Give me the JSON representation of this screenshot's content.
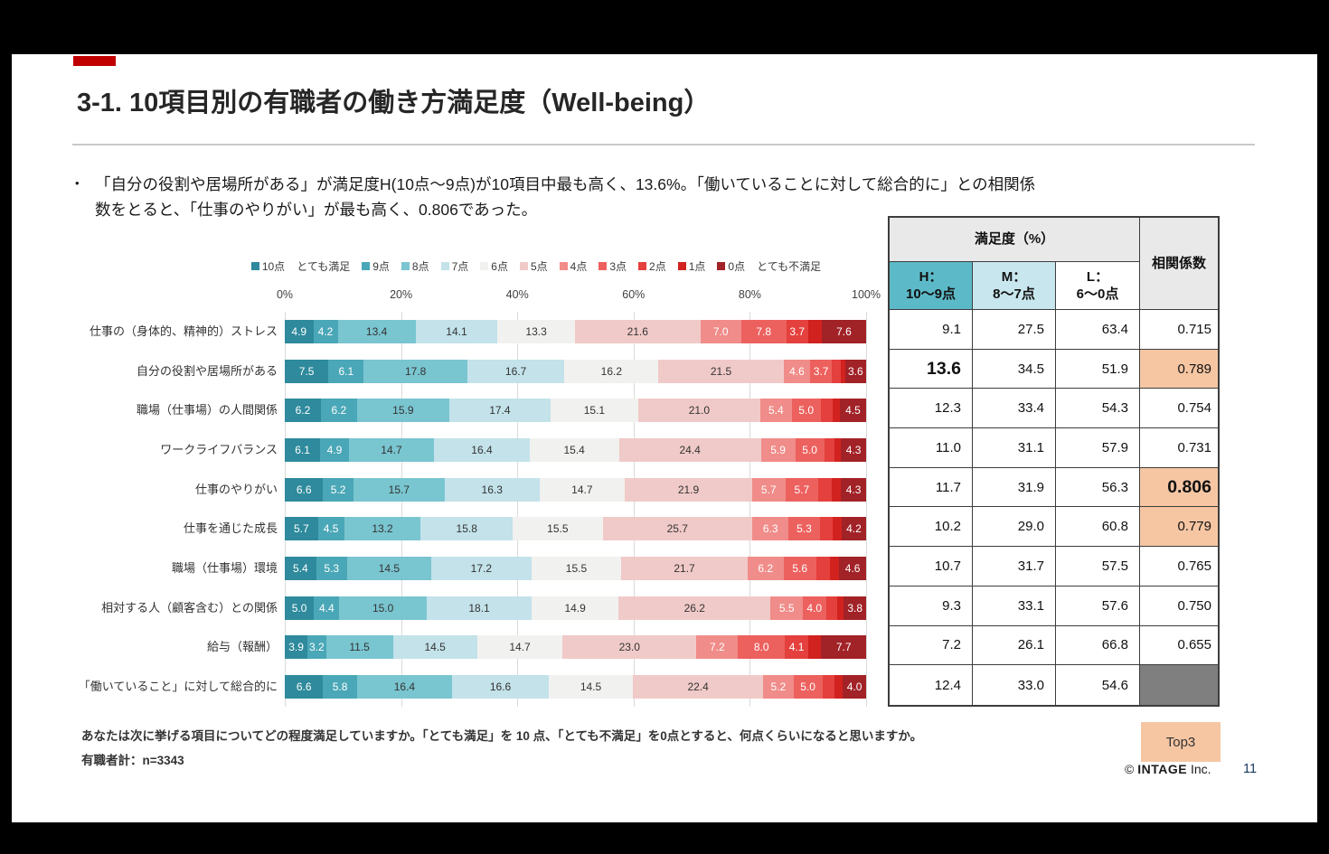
{
  "slide": {
    "title": "3-1. 10項目別の有職者の働き方満足度（Well-being）"
  },
  "bullet": {
    "marker": "•",
    "lines": [
      "「自分の役割や居場所がある」が満足度H(10点〜9点)が10項目中最も高く、13.6%。「働いていることに対して総合的に」との相関係",
      "数をとると、「仕事のやりがい」が最も高く、0.806であった。"
    ]
  },
  "colors": {
    "accent": "#c00000",
    "highlight": "#f6c6a3",
    "table_header_gray": "#e9e9e9",
    "h_header": "#5cbac8",
    "m_header": "#c8e6ee",
    "l_header": "#ffffff",
    "gray_cell": "#7f7f7f"
  },
  "chart_data": {
    "type": "bar",
    "variant": "100pct-stacked-horizontal",
    "unit": "%",
    "xlim": [
      0,
      100
    ],
    "x_ticks": [
      "0%",
      "20%",
      "40%",
      "60%",
      "80%",
      "100%"
    ],
    "grid": true,
    "legend_position": "top",
    "series_labels": [
      "10点",
      "9点",
      "8点",
      "7点",
      "6点",
      "5点",
      "4点",
      "3点",
      "2点",
      "1点",
      "0点"
    ],
    "series_colors": [
      "#2e8a9c",
      "#4aa7b7",
      "#79c5d0",
      "#c3e2ea",
      "#f1f1ef",
      "#f0cac8",
      "#f08c89",
      "#ec615e",
      "#e4403d",
      "#d2221f",
      "#a12227"
    ],
    "value_label_colors": [
      "#ffffff",
      "#ffffff",
      "#333333",
      "#333333",
      "#333333",
      "#333333",
      "#ffffff",
      "#ffffff",
      "#ffffff",
      "#ffffff",
      "#ffffff"
    ],
    "legend": [
      {
        "label": "10点",
        "color": "#2e8a9c"
      },
      {
        "label": "とても満足",
        "color": null
      },
      {
        "label": "9点",
        "color": "#4aa7b7"
      },
      {
        "label": "8点",
        "color": "#79c5d0"
      },
      {
        "label": "7点",
        "color": "#c3e2ea"
      },
      {
        "label": "6点",
        "color": "#f1f1ef"
      },
      {
        "label": "5点",
        "color": "#f0cac8"
      },
      {
        "label": "4点",
        "color": "#f08c89"
      },
      {
        "label": "3点",
        "color": "#ec615e"
      },
      {
        "label": "2点",
        "color": "#e4403d"
      },
      {
        "label": "1点",
        "color": "#d2221f"
      },
      {
        "label": "0点",
        "color": "#a12227"
      },
      {
        "label": "とても不満足",
        "color": null
      }
    ],
    "rows": [
      {
        "category": "仕事の（身体的、精神的）ストレス",
        "values": [
          4.9,
          4.2,
          13.4,
          14.1,
          13.3,
          21.6,
          7.0,
          7.8,
          3.7,
          2.4,
          7.6
        ],
        "labels": [
          "4.9",
          "4.2",
          "13.4",
          "14.1",
          "13.3",
          "21.6",
          "7.0",
          "7.8",
          "3.7",
          "",
          "7.6"
        ]
      },
      {
        "category": "自分の役割や居場所がある",
        "values": [
          7.5,
          6.1,
          17.8,
          16.7,
          16.2,
          21.5,
          4.6,
          3.7,
          1.5,
          0.8,
          3.6
        ],
        "labels": [
          "7.5",
          "6.1",
          "17.8",
          "16.7",
          "16.2",
          "21.5",
          "4.6",
          "3.7",
          "",
          "",
          "3.6"
        ]
      },
      {
        "category": "職場（仕事場）の人間関係",
        "values": [
          6.2,
          6.2,
          15.9,
          17.4,
          15.1,
          21.0,
          5.4,
          5.0,
          2.1,
          1.2,
          4.5
        ],
        "labels": [
          "6.2",
          "6.2",
          "15.9",
          "17.4",
          "15.1",
          "21.0",
          "5.4",
          "5.0",
          "",
          "",
          "4.5"
        ]
      },
      {
        "category": "ワークライフバランス",
        "values": [
          6.1,
          4.9,
          14.7,
          16.4,
          15.4,
          24.4,
          5.9,
          5.0,
          1.8,
          1.1,
          4.3
        ],
        "labels": [
          "6.1",
          "4.9",
          "14.7",
          "16.4",
          "15.4",
          "24.4",
          "5.9",
          "5.0",
          "",
          "",
          "4.3"
        ]
      },
      {
        "category": "仕事のやりがい",
        "values": [
          6.6,
          5.2,
          15.7,
          16.3,
          14.7,
          21.9,
          5.7,
          5.7,
          2.3,
          1.6,
          4.3
        ],
        "labels": [
          "6.6",
          "5.2",
          "15.7",
          "16.3",
          "14.7",
          "21.9",
          "5.7",
          "5.7",
          "",
          "",
          "4.3"
        ]
      },
      {
        "category": "仕事を通じた成長",
        "values": [
          5.7,
          4.5,
          13.2,
          15.8,
          15.5,
          25.7,
          6.3,
          5.3,
          2.2,
          1.6,
          4.2
        ],
        "labels": [
          "5.7",
          "4.5",
          "13.2",
          "15.8",
          "15.5",
          "25.7",
          "6.3",
          "5.3",
          "",
          "",
          "4.2"
        ]
      },
      {
        "category": "職場（仕事場）環境",
        "values": [
          5.4,
          5.3,
          14.5,
          17.2,
          15.5,
          21.7,
          6.2,
          5.6,
          2.4,
          1.6,
          4.6
        ],
        "labels": [
          "5.4",
          "5.3",
          "14.5",
          "17.2",
          "15.5",
          "21.7",
          "6.2",
          "5.6",
          "",
          "",
          "4.6"
        ]
      },
      {
        "category": "相対する人（顧客含む）との関係",
        "values": [
          5.0,
          4.4,
          15.0,
          18.1,
          14.9,
          26.2,
          5.5,
          4.0,
          1.9,
          1.2,
          3.8
        ],
        "labels": [
          "5.0",
          "4.4",
          "15.0",
          "18.1",
          "14.9",
          "26.2",
          "5.5",
          "4.0",
          "",
          "",
          "3.8"
        ]
      },
      {
        "category": "給与（報酬）",
        "values": [
          3.9,
          3.2,
          11.5,
          14.5,
          14.7,
          23.0,
          7.2,
          8.0,
          4.1,
          2.2,
          7.7
        ],
        "labels": [
          "3.9",
          "3.2",
          "11.5",
          "14.5",
          "14.7",
          "23.0",
          "7.2",
          "8.0",
          "4.1",
          "",
          "7.7"
        ]
      },
      {
        "category": "「働いていること」に対して総合的に",
        "values": [
          6.6,
          5.8,
          16.4,
          16.6,
          14.5,
          22.4,
          5.2,
          5.0,
          2.1,
          1.4,
          4.0
        ],
        "labels": [
          "6.6",
          "5.8",
          "16.4",
          "16.6",
          "14.5",
          "22.4",
          "5.2",
          "5.0",
          "",
          "",
          "4.0"
        ]
      }
    ]
  },
  "table": {
    "header": {
      "satisfaction": "満足度（%）",
      "corr": "相関係数",
      "cols": [
        {
          "l1": "H：",
          "l2": "10〜9点"
        },
        {
          "l1": "M：",
          "l2": "8〜7点"
        },
        {
          "l1": "L：",
          "l2": "6〜0点"
        }
      ]
    },
    "rows": [
      {
        "h": "9.1",
        "m": "27.5",
        "l": "63.4",
        "corr": "0.715",
        "h_big": false,
        "corr_big": false,
        "corr_hl": false,
        "corr_gray": false
      },
      {
        "h": "13.6",
        "m": "34.5",
        "l": "51.9",
        "corr": "0.789",
        "h_big": true,
        "corr_big": false,
        "corr_hl": true,
        "corr_gray": false
      },
      {
        "h": "12.3",
        "m": "33.4",
        "l": "54.3",
        "corr": "0.754",
        "h_big": false,
        "corr_big": false,
        "corr_hl": false,
        "corr_gray": false
      },
      {
        "h": "11.0",
        "m": "31.1",
        "l": "57.9",
        "corr": "0.731",
        "h_big": false,
        "corr_big": false,
        "corr_hl": false,
        "corr_gray": false
      },
      {
        "h": "11.7",
        "m": "31.9",
        "l": "56.3",
        "corr": "0.806",
        "h_big": false,
        "corr_big": true,
        "corr_hl": true,
        "corr_gray": false
      },
      {
        "h": "10.2",
        "m": "29.0",
        "l": "60.8",
        "corr": "0.779",
        "h_big": false,
        "corr_big": false,
        "corr_hl": true,
        "corr_gray": false
      },
      {
        "h": "10.7",
        "m": "31.7",
        "l": "57.5",
        "corr": "0.765",
        "h_big": false,
        "corr_big": false,
        "corr_hl": false,
        "corr_gray": false
      },
      {
        "h": "9.3",
        "m": "33.1",
        "l": "57.6",
        "corr": "0.750",
        "h_big": false,
        "corr_big": false,
        "corr_hl": false,
        "corr_gray": false
      },
      {
        "h": "7.2",
        "m": "26.1",
        "l": "66.8",
        "corr": "0.655",
        "h_big": false,
        "corr_big": false,
        "corr_hl": false,
        "corr_gray": false
      },
      {
        "h": "12.4",
        "m": "33.0",
        "l": "54.6",
        "corr": "",
        "h_big": false,
        "corr_big": false,
        "corr_hl": false,
        "corr_gray": true
      }
    ]
  },
  "footer": {
    "question": "あなたは次に挙げる項目についてどの程度満足していますか。「とても満足」を 10 点、「とても不満足」を0点とすると、何点くらいになると思いますか。",
    "sample": "有職者計：n=3343",
    "top3_label": "Top3",
    "copyright_mark": "©",
    "company": "INTAGE",
    "inc": "Inc.",
    "page": "11"
  }
}
